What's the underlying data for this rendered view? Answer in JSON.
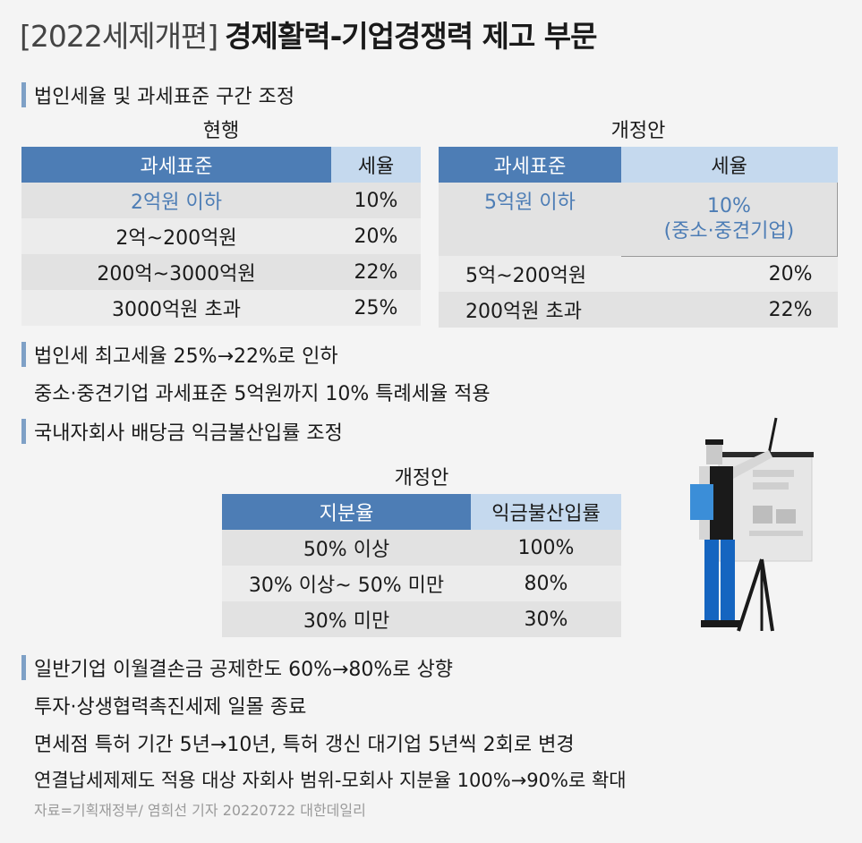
{
  "title": {
    "tag": "[2022세제개편]",
    "main": "경제활력-기업경쟁력 제고 부문"
  },
  "section1": {
    "heading": "법인세율 및 과세표준 구간 조정",
    "current": {
      "caption": "현행",
      "headers": [
        "과세표준",
        "세율"
      ],
      "rows": [
        [
          "2억원 이하",
          "10%"
        ],
        [
          "2억~200억원",
          "20%"
        ],
        [
          "200억~3000억원",
          "22%"
        ],
        [
          "3000억원 초과",
          "25%"
        ]
      ]
    },
    "proposal": {
      "caption": "개정안",
      "headers": [
        "과세표준",
        "세율"
      ],
      "first_row": {
        "base": "5억원 이하",
        "rate_line1": "10%",
        "rate_line2": "(중소·중견기업)"
      },
      "rows": [
        [
          "5억~200억원",
          "20%"
        ],
        [
          "200억원 초과",
          "22%"
        ]
      ]
    }
  },
  "notes1": [
    "법인세 최고세율 25%→22%로 인하",
    "중소·중견기업 과세표준 5억원까지 10% 특례세율 적용"
  ],
  "section2": {
    "heading": "국내자회사 배당금 익금불산입률 조정",
    "caption": "개정안",
    "headers": [
      "지분율",
      "익금불산입률"
    ],
    "rows": [
      [
        "50% 이상",
        "100%"
      ],
      [
        "30% 이상~ 50% 미만",
        "80%"
      ],
      [
        "30% 미만",
        "30%"
      ]
    ]
  },
  "notes2": [
    "일반기업 이월결손금 공제한도 60%→80%로 상향",
    "투자·상생협력촉진세제 일몰 종료",
    "면세점 특허 기간 5년→10년, 특허 갱신 대기업 5년씩 2회로 변경",
    "연결납세제제도 적용 대상 자회사 범위-모회사 지분율 100%→90%로 확대"
  ],
  "source": "자료=기획재정부/ 염희선 기자 20220722 대한데일리",
  "colors": {
    "accent": "#4d7db5",
    "accent_light": "#c5d9ee",
    "bar": "#7ea0c6"
  },
  "illustration": "presenter-with-easel-icon"
}
